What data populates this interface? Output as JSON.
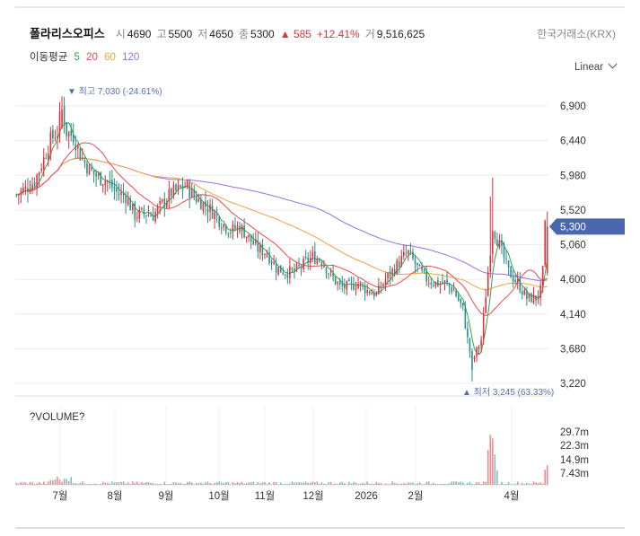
{
  "header": {
    "name": "폴라리스오피스",
    "open_label": "시",
    "open": "4690",
    "high_label": "고",
    "high": "5500",
    "low_label": "저",
    "low": "4650",
    "close_label": "종",
    "close": "5300",
    "change": "▲ 585",
    "change_pct": "+12.41%",
    "volume_label": "거",
    "volume": "9,516,625",
    "exchange": "한국거래소(KRX)"
  },
  "ma_legend": {
    "label": "이동평균",
    "p5": "5",
    "p20": "20",
    "p60": "60",
    "p120": "120"
  },
  "scale_menu": "Linear",
  "colors": {
    "up": "#e0303a",
    "down": "#2a8f8a",
    "ma5": "#2aa84a",
    "ma20": "#e84b4b",
    "ma60": "#f0a040",
    "ma120": "#9a6ee0",
    "price_tag": "#4a67ad",
    "annotation": "#5470b0"
  },
  "chart_data": {
    "type": "candlestick",
    "y_ticks": [
      "6,900",
      "6,440",
      "5,980",
      "5,520",
      "5,060",
      "4,600",
      "4,140",
      "3,680",
      "3,220"
    ],
    "ylim": [
      3100,
      7200
    ],
    "x_ticks": [
      "7월",
      "8월",
      "9월",
      "10월",
      "11월",
      "12월",
      "2026",
      "2월",
      "4월"
    ],
    "last_price": "5,300",
    "max_label": "▼ 최고 7,030 (-24.61%)",
    "min_label": "▲ 최저 3,245 (63.33%)",
    "volume_panel_title": "?VOLUME?",
    "volume_ticks": [
      "29.7m",
      "22.3m",
      "14.9m",
      "7.43m"
    ],
    "price_anchors": [
      [
        0,
        5720
      ],
      [
        4,
        5800
      ],
      [
        8,
        5900
      ],
      [
        12,
        6200
      ],
      [
        15,
        6450
      ],
      [
        18,
        6550
      ],
      [
        20,
        6900
      ],
      [
        22,
        6550
      ],
      [
        25,
        6500
      ],
      [
        28,
        6250
      ],
      [
        32,
        6050
      ],
      [
        36,
        5950
      ],
      [
        40,
        5900
      ],
      [
        44,
        5750
      ],
      [
        48,
        5700
      ],
      [
        52,
        5450
      ],
      [
        56,
        5480
      ],
      [
        60,
        5450
      ],
      [
        64,
        5600
      ],
      [
        68,
        5750
      ],
      [
        72,
        5800
      ],
      [
        74,
        5850
      ],
      [
        78,
        5700
      ],
      [
        82,
        5600
      ],
      [
        86,
        5500
      ],
      [
        90,
        5350
      ],
      [
        94,
        5250
      ],
      [
        98,
        5300
      ],
      [
        102,
        5150
      ],
      [
        106,
        5000
      ],
      [
        110,
        4950
      ],
      [
        114,
        4750
      ],
      [
        118,
        4700
      ],
      [
        122,
        4700
      ],
      [
        126,
        4800
      ],
      [
        130,
        4900
      ],
      [
        134,
        4850
      ],
      [
        138,
        4650
      ],
      [
        142,
        4500
      ],
      [
        146,
        4500
      ],
      [
        150,
        4550
      ],
      [
        154,
        4450
      ],
      [
        158,
        4400
      ],
      [
        162,
        4600
      ],
      [
        166,
        4750
      ],
      [
        170,
        4900
      ],
      [
        172,
        4950
      ],
      [
        176,
        4750
      ],
      [
        180,
        4600
      ],
      [
        184,
        4550
      ],
      [
        188,
        4550
      ],
      [
        192,
        4450
      ],
      [
        196,
        4200
      ],
      [
        198,
        3800
      ],
      [
        200,
        3500
      ],
      [
        204,
        3800
      ],
      [
        207,
        4700
      ],
      [
        209,
        5300
      ],
      [
        212,
        5050
      ],
      [
        216,
        4700
      ],
      [
        220,
        4550
      ],
      [
        224,
        4350
      ],
      [
        228,
        4350
      ],
      [
        230,
        4450
      ],
      [
        231,
        4700
      ],
      [
        232,
        5300
      ]
    ],
    "ohlc_last": {
      "open": 4690,
      "high": 5500,
      "low": 4650,
      "close": 5300
    },
    "volume_spikes": [
      [
        207,
        19.5
      ],
      [
        208,
        28.0
      ],
      [
        209,
        26.0
      ],
      [
        210,
        17.0
      ],
      [
        211,
        8.0
      ],
      [
        232,
        8.5
      ],
      [
        233,
        11.0
      ]
    ]
  }
}
